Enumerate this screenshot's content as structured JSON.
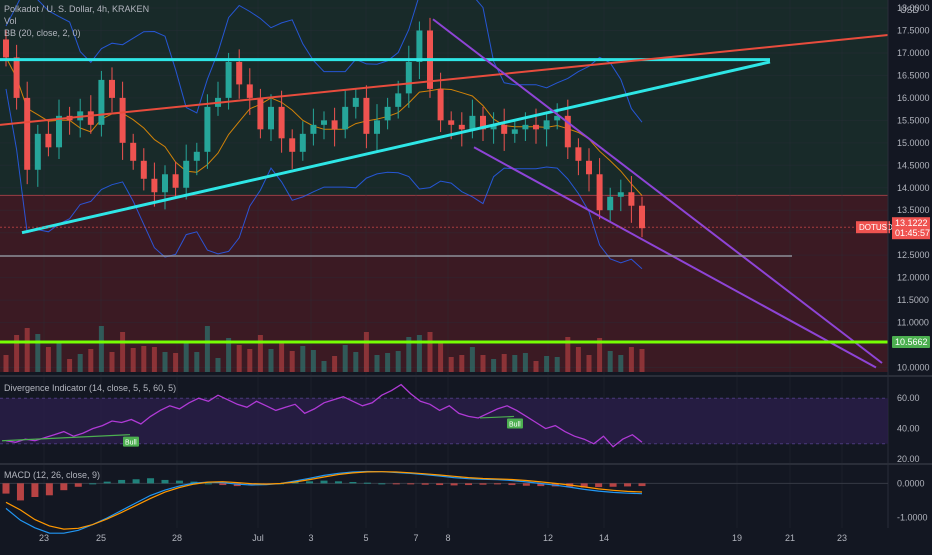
{
  "header": {
    "symbol_line": "Polkadot / U. S. Dollar, 4h, KRAKEN",
    "vol_label": "Vol",
    "bb_label": "BB (20, close, 2, 0)",
    "currency": "USD"
  },
  "price_tag": {
    "symbol": "DOTUSD",
    "price": "13.1222",
    "countdown": "01:45:57"
  },
  "level_tag": "10.5662",
  "rsi_panel": {
    "label": "Divergence Indicator (14, close, 5, 5, 60, 5)",
    "bull_labels": [
      "Bull",
      "Bull"
    ]
  },
  "macd_panel": {
    "label": "MACD (12, 26, close, 9)"
  },
  "colors": {
    "background": "#131722",
    "bull": "#26a69a",
    "bear": "#ef5350",
    "cyan_line": "#2ee6e6",
    "red_line": "#e84c3d",
    "purple_line": "#8e44d6",
    "green_level": "#76ff03",
    "rsi_line": "#b03ad6",
    "bb_band": "#2962ff",
    "bb_basis": "#ff9800"
  },
  "chart_data": [
    {
      "type": "candlestick",
      "title": "Polkadot / U. S. Dollar, 4h, KRAKEN",
      "x_tick_labels": [
        "23",
        "25",
        "28",
        "Jul",
        "3",
        "5",
        "7",
        "8",
        "12",
        "14",
        "19",
        "21",
        "23"
      ],
      "y_tick_labels": [
        "18.0000",
        "17.5000",
        "17.0000",
        "16.5000",
        "16.0000",
        "15.5000",
        "15.0000",
        "14.5000",
        "14.0000",
        "13.5000",
        "13.0000",
        "12.5000",
        "12.0000",
        "11.5000",
        "11.0000",
        "10.5000",
        "10.0000"
      ],
      "ylim": [
        9.9,
        18.0
      ],
      "close_path": [
        16.9,
        16.0,
        14.4,
        15.2,
        14.9,
        15.6,
        15.5,
        15.7,
        15.4,
        16.4,
        16.0,
        15.0,
        14.6,
        14.2,
        13.9,
        14.3,
        14.0,
        14.6,
        14.8,
        15.8,
        16.0,
        16.8,
        16.3,
        16.0,
        15.3,
        15.8,
        15.1,
        14.8,
        15.2,
        15.4,
        15.5,
        15.3,
        15.8,
        16.0,
        15.2,
        15.5,
        15.8,
        16.1,
        16.8,
        17.5,
        16.2,
        15.5,
        15.4,
        15.3,
        15.6,
        15.3,
        15.4,
        15.2,
        15.3,
        15.4,
        15.3,
        15.5,
        15.6,
        14.9,
        14.6,
        14.3,
        13.5,
        13.8,
        13.9,
        13.6,
        13.1
      ],
      "last_price": 13.1222,
      "horizontal_levels": [
        {
          "name": "green-support",
          "value": 10.5662
        },
        {
          "name": "gray-level",
          "value": 12.48
        },
        {
          "name": "zone-boundary",
          "value": 13.83
        }
      ],
      "trendlines": [
        {
          "name": "cyan-resistance",
          "from": [
            "22",
            16.85
          ],
          "to": [
            "20",
            16.85
          ]
        },
        {
          "name": "cyan-support",
          "from": [
            "22",
            13.0
          ],
          "to": [
            "20",
            16.8
          ]
        },
        {
          "name": "red-trendline",
          "from": [
            "22",
            15.4
          ],
          "to": [
            "25",
            17.4
          ]
        },
        {
          "name": "purple-wedge-upper",
          "from": [
            "7",
            17.75
          ],
          "to": [
            "23",
            10.1
          ]
        },
        {
          "name": "purple-wedge-lower",
          "from": [
            "8",
            14.9
          ],
          "to": [
            "23",
            10.0
          ]
        }
      ]
    },
    {
      "type": "line",
      "title": "Divergence Indicator (14, close, 5, 5, 60, 5)",
      "y_tick_labels": [
        "60.00",
        "40.00",
        "20.00"
      ],
      "ylim": [
        18,
        72
      ],
      "values": [
        32,
        31,
        33,
        32,
        34,
        36,
        38,
        35,
        37,
        40,
        42,
        45,
        44,
        46,
        43,
        48,
        52,
        55,
        53,
        57,
        60,
        58,
        62,
        59,
        56,
        54,
        58,
        55,
        52,
        54,
        56,
        50,
        53,
        57,
        59,
        61,
        58,
        55,
        57,
        62,
        65,
        69,
        63,
        58,
        56,
        52,
        55,
        50,
        48,
        47,
        50,
        53,
        55,
        52,
        48,
        44,
        40,
        42,
        38,
        35,
        33,
        30,
        35,
        28,
        33,
        36,
        31
      ],
      "bull_divergences": [
        {
          "label": "Bull",
          "from_value": 32,
          "to_value": 36
        },
        {
          "label": "Bull",
          "from_value": 47,
          "to_value": 48
        }
      ]
    },
    {
      "type": "bar",
      "title": "MACD (12, 26, close, 9)",
      "y_tick_labels": [
        "0.0000",
        "-1.0000"
      ],
      "ylim": [
        -1.25,
        0.45
      ],
      "histogram": [
        -0.3,
        -0.5,
        -0.4,
        -0.35,
        -0.2,
        -0.1,
        0.0,
        0.05,
        0.1,
        0.12,
        0.15,
        0.1,
        0.08,
        0.05,
        0.0,
        -0.05,
        -0.08,
        -0.06,
        -0.03,
        0.0,
        0.05,
        0.06,
        0.08,
        0.06,
        0.04,
        0.02,
        0.0,
        -0.02,
        -0.03,
        -0.04,
        -0.05,
        -0.06,
        -0.05,
        -0.04,
        -0.03,
        -0.05,
        -0.07,
        -0.08,
        -0.09,
        -0.1,
        -0.12,
        -0.11,
        -0.1,
        -0.09,
        -0.08
      ]
    }
  ]
}
